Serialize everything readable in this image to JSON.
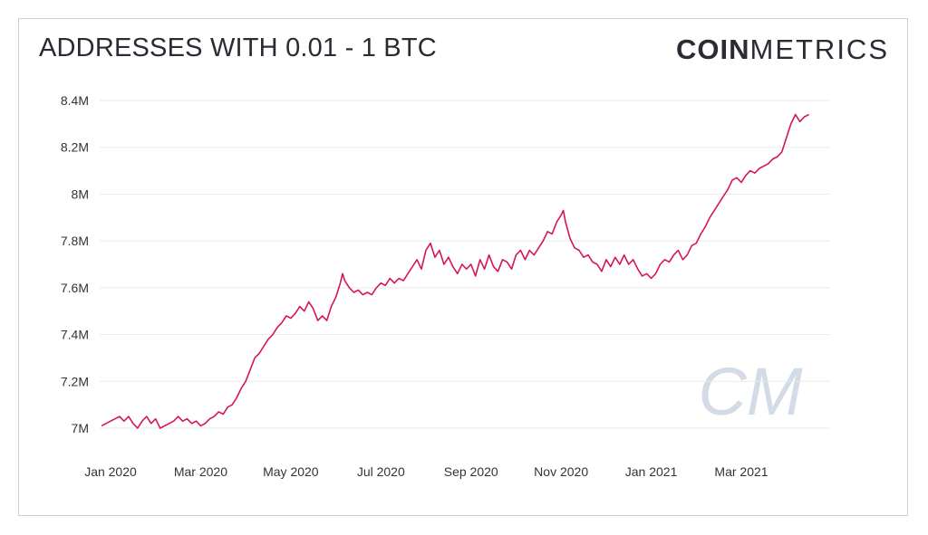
{
  "header": {
    "title": "ADDRESSES WITH 0.01 - 1 BTC",
    "brand_bold": "COIN",
    "brand_light": "METRICS",
    "watermark": "CM"
  },
  "colors": {
    "line": "#d6174f",
    "grid": "#e9e9e9",
    "text": "#333333",
    "watermark": "#d3dbe6"
  },
  "chart_data": {
    "type": "line",
    "title": "ADDRESSES WITH 0.01 - 1 BTC",
    "xlabel": "",
    "ylabel": "",
    "x_unit": "month index (0 = Jan 2020)",
    "ylim": [
      6.96,
      8.45
    ],
    "y_ticks": [
      7.0,
      7.2,
      7.4,
      7.6,
      7.8,
      8.0,
      8.2,
      8.4
    ],
    "y_tick_labels": [
      "7M",
      "7.2M",
      "7.4M",
      "7.6M",
      "7.8M",
      "8M",
      "8.2M",
      "8.4M"
    ],
    "x_ticks": [
      0,
      2,
      4,
      6,
      8,
      10,
      12,
      14
    ],
    "x_tick_labels": [
      "Jan 2020",
      "Mar 2020",
      "May 2020",
      "Jul 2020",
      "Sep 2020",
      "Nov 2020",
      "Jan 2021",
      "Mar 2021"
    ],
    "grid": true,
    "legend": "none",
    "series": [
      {
        "values_unit": "million addresses",
        "points": [
          [
            -0.2,
            7.01
          ],
          [
            0.0,
            7.03
          ],
          [
            0.2,
            7.05
          ],
          [
            0.3,
            7.03
          ],
          [
            0.4,
            7.05
          ],
          [
            0.5,
            7.02
          ],
          [
            0.6,
            7.0
          ],
          [
            0.7,
            7.03
          ],
          [
            0.8,
            7.05
          ],
          [
            0.9,
            7.02
          ],
          [
            1.0,
            7.04
          ],
          [
            1.1,
            7.0
          ],
          [
            1.2,
            7.01
          ],
          [
            1.3,
            7.02
          ],
          [
            1.4,
            7.03
          ],
          [
            1.5,
            7.05
          ],
          [
            1.6,
            7.03
          ],
          [
            1.7,
            7.04
          ],
          [
            1.8,
            7.02
          ],
          [
            1.9,
            7.03
          ],
          [
            2.0,
            7.01
          ],
          [
            2.1,
            7.02
          ],
          [
            2.2,
            7.04
          ],
          [
            2.3,
            7.05
          ],
          [
            2.4,
            7.07
          ],
          [
            2.5,
            7.06
          ],
          [
            2.6,
            7.09
          ],
          [
            2.7,
            7.1
          ],
          [
            2.8,
            7.13
          ],
          [
            2.9,
            7.17
          ],
          [
            3.0,
            7.2
          ],
          [
            3.1,
            7.25
          ],
          [
            3.2,
            7.3
          ],
          [
            3.3,
            7.32
          ],
          [
            3.4,
            7.35
          ],
          [
            3.5,
            7.38
          ],
          [
            3.6,
            7.4
          ],
          [
            3.7,
            7.43
          ],
          [
            3.8,
            7.45
          ],
          [
            3.9,
            7.48
          ],
          [
            4.0,
            7.47
          ],
          [
            4.1,
            7.49
          ],
          [
            4.2,
            7.52
          ],
          [
            4.3,
            7.5
          ],
          [
            4.4,
            7.54
          ],
          [
            4.5,
            7.51
          ],
          [
            4.6,
            7.46
          ],
          [
            4.7,
            7.48
          ],
          [
            4.8,
            7.46
          ],
          [
            4.9,
            7.52
          ],
          [
            5.0,
            7.56
          ],
          [
            5.1,
            7.62
          ],
          [
            5.15,
            7.66
          ],
          [
            5.2,
            7.63
          ],
          [
            5.3,
            7.6
          ],
          [
            5.4,
            7.58
          ],
          [
            5.5,
            7.59
          ],
          [
            5.6,
            7.57
          ],
          [
            5.7,
            7.58
          ],
          [
            5.8,
            7.57
          ],
          [
            5.9,
            7.6
          ],
          [
            6.0,
            7.62
          ],
          [
            6.1,
            7.61
          ],
          [
            6.2,
            7.64
          ],
          [
            6.3,
            7.62
          ],
          [
            6.4,
            7.64
          ],
          [
            6.5,
            7.63
          ],
          [
            6.6,
            7.66
          ],
          [
            6.7,
            7.69
          ],
          [
            6.8,
            7.72
          ],
          [
            6.9,
            7.68
          ],
          [
            7.0,
            7.76
          ],
          [
            7.1,
            7.79
          ],
          [
            7.2,
            7.73
          ],
          [
            7.3,
            7.76
          ],
          [
            7.4,
            7.7
          ],
          [
            7.5,
            7.73
          ],
          [
            7.6,
            7.69
          ],
          [
            7.7,
            7.66
          ],
          [
            7.8,
            7.7
          ],
          [
            7.9,
            7.68
          ],
          [
            8.0,
            7.7
          ],
          [
            8.1,
            7.65
          ],
          [
            8.2,
            7.72
          ],
          [
            8.3,
            7.68
          ],
          [
            8.4,
            7.74
          ],
          [
            8.5,
            7.69
          ],
          [
            8.6,
            7.67
          ],
          [
            8.7,
            7.72
          ],
          [
            8.8,
            7.71
          ],
          [
            8.9,
            7.68
          ],
          [
            9.0,
            7.74
          ],
          [
            9.1,
            7.76
          ],
          [
            9.2,
            7.72
          ],
          [
            9.3,
            7.76
          ],
          [
            9.4,
            7.74
          ],
          [
            9.5,
            7.77
          ],
          [
            9.6,
            7.8
          ],
          [
            9.7,
            7.84
          ],
          [
            9.8,
            7.83
          ],
          [
            9.9,
            7.88
          ],
          [
            10.0,
            7.91
          ],
          [
            10.05,
            7.93
          ],
          [
            10.1,
            7.88
          ],
          [
            10.2,
            7.81
          ],
          [
            10.3,
            7.77
          ],
          [
            10.4,
            7.76
          ],
          [
            10.5,
            7.73
          ],
          [
            10.6,
            7.74
          ],
          [
            10.7,
            7.71
          ],
          [
            10.8,
            7.7
          ],
          [
            10.9,
            7.67
          ],
          [
            11.0,
            7.72
          ],
          [
            11.1,
            7.69
          ],
          [
            11.2,
            7.73
          ],
          [
            11.3,
            7.7
          ],
          [
            11.4,
            7.74
          ],
          [
            11.5,
            7.7
          ],
          [
            11.6,
            7.72
          ],
          [
            11.7,
            7.68
          ],
          [
            11.8,
            7.65
          ],
          [
            11.9,
            7.66
          ],
          [
            12.0,
            7.64
          ],
          [
            12.1,
            7.66
          ],
          [
            12.2,
            7.7
          ],
          [
            12.3,
            7.72
          ],
          [
            12.4,
            7.71
          ],
          [
            12.5,
            7.74
          ],
          [
            12.6,
            7.76
          ],
          [
            12.7,
            7.72
          ],
          [
            12.8,
            7.74
          ],
          [
            12.9,
            7.78
          ],
          [
            13.0,
            7.79
          ],
          [
            13.1,
            7.83
          ],
          [
            13.2,
            7.86
          ],
          [
            13.3,
            7.9
          ],
          [
            13.4,
            7.93
          ],
          [
            13.5,
            7.96
          ],
          [
            13.6,
            7.99
          ],
          [
            13.7,
            8.02
          ],
          [
            13.8,
            8.06
          ],
          [
            13.9,
            8.07
          ],
          [
            14.0,
            8.05
          ],
          [
            14.1,
            8.08
          ],
          [
            14.2,
            8.1
          ],
          [
            14.3,
            8.09
          ],
          [
            14.4,
            8.11
          ],
          [
            14.5,
            8.12
          ],
          [
            14.6,
            8.13
          ],
          [
            14.7,
            8.15
          ],
          [
            14.8,
            8.16
          ],
          [
            14.9,
            8.18
          ],
          [
            15.0,
            8.24
          ],
          [
            15.1,
            8.3
          ],
          [
            15.2,
            8.34
          ],
          [
            15.3,
            8.31
          ],
          [
            15.4,
            8.33
          ],
          [
            15.5,
            8.34
          ]
        ]
      }
    ]
  }
}
